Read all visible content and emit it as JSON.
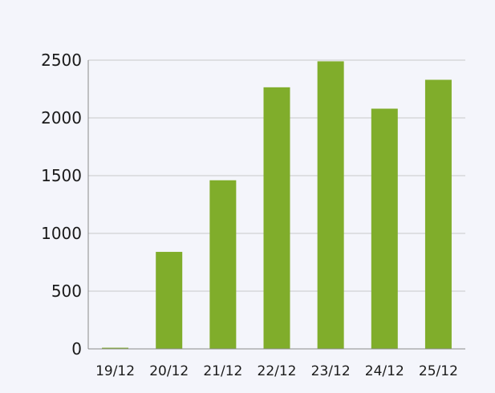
{
  "colors": {
    "background": "#f4f5fb",
    "bar": "#80ad2b",
    "grid": "#c9c9c9",
    "axis": "#8a8a8a",
    "text": "#1a1a1a"
  },
  "chart_data": {
    "type": "bar",
    "title": "",
    "xlabel": "",
    "ylabel": "",
    "categories": [
      "19/12",
      "20/12",
      "21/12",
      "22/12",
      "23/12",
      "24/12",
      "25/12"
    ],
    "values": [
      10,
      840,
      1460,
      2265,
      2490,
      2080,
      2330
    ],
    "ylim": [
      0,
      2500
    ],
    "yticks": [
      0,
      500,
      1000,
      1500,
      2000,
      2500
    ],
    "grid": true,
    "legend": "none"
  }
}
